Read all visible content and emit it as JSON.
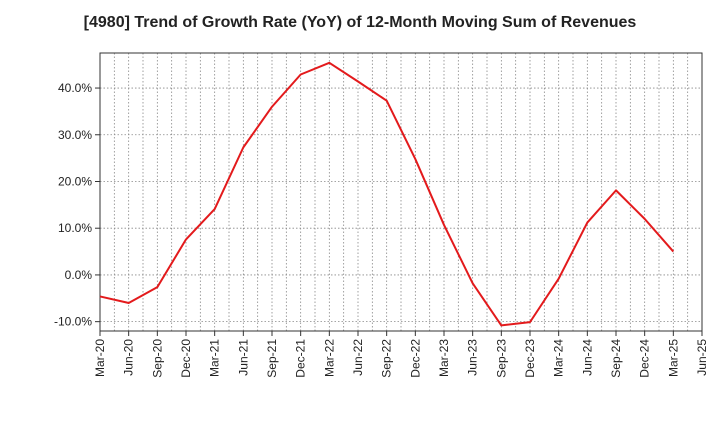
{
  "chart_data": {
    "type": "line",
    "title": "[4980]  Trend of Growth Rate (YoY) of 12-Month Moving Sum of Revenues",
    "xlabel": "",
    "ylabel": "",
    "grid": true,
    "categories": [
      "Mar-20",
      "Jun-20",
      "Sep-20",
      "Dec-20",
      "Mar-21",
      "Jun-21",
      "Sep-21",
      "Dec-21",
      "Mar-22",
      "Jun-22",
      "Sep-22",
      "Dec-22",
      "Mar-23",
      "Jun-23",
      "Sep-23",
      "Dec-23",
      "Mar-24",
      "Jun-24",
      "Sep-24",
      "Dec-24",
      "Mar-25",
      "Jun-25"
    ],
    "y_ticks": [
      "-10.0%",
      "0.0%",
      "10.0%",
      "20.0%",
      "30.0%",
      "40.0%"
    ],
    "y_tick_values": [
      -10,
      0,
      10,
      20,
      30,
      40
    ],
    "ylim": [
      -12,
      47.5
    ],
    "series": [
      {
        "color": "#e31a1c",
        "values": [
          -4.6,
          -6.0,
          -2.6,
          7.6,
          14.1,
          27.3,
          36.0,
          42.9,
          45.4,
          41.4,
          37.3,
          24.8,
          10.7,
          -1.8,
          -10.8,
          -10.1,
          -0.8,
          11.2,
          18.1,
          12.0,
          5.0,
          null
        ]
      }
    ]
  }
}
